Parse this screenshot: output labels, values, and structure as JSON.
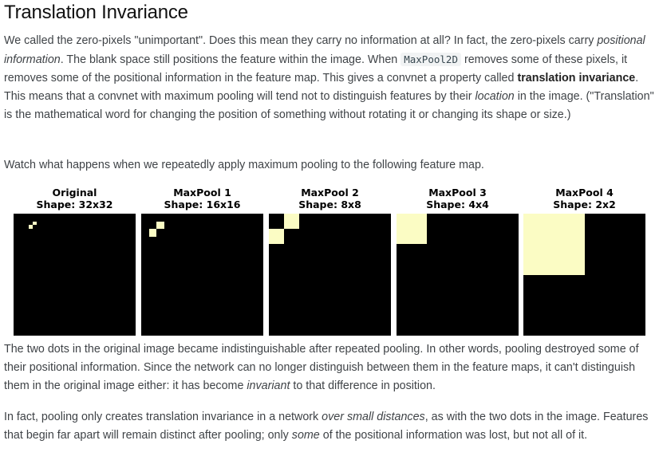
{
  "heading": "Translation Invariance",
  "p1": {
    "t1": "We called the zero-pixels \"unimportant\". Does this mean they carry no information at all? In fact, the zero-pixels carry ",
    "em1": "positional information",
    "t2": ". The blank space still positions the feature within the image. When ",
    "code1": "MaxPool2D",
    "t3": " removes some of these pixels, it removes some of the positional information in the feature map. This gives a convnet a property called ",
    "strong1": "translation invariance",
    "t4": ". This means that a convnet with maximum pooling will tend not to distinguish features by their ",
    "em2": "location",
    "t5": " in the image. (\"Translation\" is the mathematical word for changing the position of something without rotating it or changing its shape or size.)"
  },
  "p2": "Watch what happens when we repeatedly apply maximum pooling to the following feature map.",
  "figure": {
    "hot_color": "#fbfcc4",
    "background_color": "#000000",
    "panels": [
      {
        "title": "Original",
        "shape_label": "Shape: 32x32",
        "grid": 32,
        "hot_cells": [
          [
            5,
            2
          ],
          [
            4,
            3
          ]
        ]
      },
      {
        "title": "MaxPool 1",
        "shape_label": "Shape: 16x16",
        "grid": 16,
        "hot_cells": [
          [
            2,
            1
          ],
          [
            1,
            2
          ]
        ]
      },
      {
        "title": "MaxPool 2",
        "shape_label": "Shape: 8x8",
        "grid": 8,
        "hot_cells": [
          [
            1,
            0
          ],
          [
            0,
            1
          ]
        ]
      },
      {
        "title": "MaxPool 3",
        "shape_label": "Shape: 4x4",
        "grid": 4,
        "hot_cells": [
          [
            0,
            0
          ]
        ]
      },
      {
        "title": "MaxPool 4",
        "shape_label": "Shape: 2x2",
        "grid": 2,
        "hot_cells": [
          [
            0,
            0
          ]
        ]
      }
    ]
  },
  "p3": {
    "t1": "The two dots in the original image became indistinguishable after repeated pooling. In other words, pooling destroyed some of their positional information. Since the network can no longer distinguish between them in the feature maps, it can't distinguish them in the original image either: it has become ",
    "em1": "invariant",
    "t2": " to that difference in position."
  },
  "p4": {
    "t1": "In fact, pooling only creates translation invariance in a network ",
    "em1": "over small distances",
    "t2": ", as with the two dots in the image. Features that begin far apart will remain distinct after pooling; only ",
    "em2": "some",
    "t3": " of the positional information was lost, but not all of it."
  }
}
